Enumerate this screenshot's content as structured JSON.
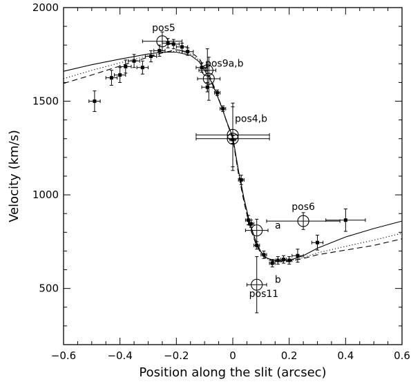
{
  "chart_data": {
    "type": "scatter",
    "xlabel": "Position along the slit (arcsec)",
    "ylabel": "Velocity (km/s)",
    "xlim": [
      -0.6,
      0.6
    ],
    "ylim": [
      200,
      2000
    ],
    "xticks": [
      -0.6,
      -0.4,
      -0.2,
      0,
      0.2,
      0.4,
      0.6
    ],
    "xtick_labels": [
      "−0.6",
      "−0.4",
      "−0.2",
      "0",
      "0.2",
      "0.4",
      "0.6"
    ],
    "yticks": [
      500,
      1000,
      1500,
      2000
    ],
    "ytick_labels": [
      "500",
      "1000",
      "1500",
      "2000"
    ],
    "grid": false,
    "legend": "none",
    "points": [
      {
        "x": -0.49,
        "y": 1500,
        "xerr": 0.02,
        "yerr": 55
      },
      {
        "x": -0.43,
        "y": 1625,
        "xerr": 0.02,
        "yerr": 40
      },
      {
        "x": -0.4,
        "y": 1640,
        "xerr": 0.02,
        "yerr": 40
      },
      {
        "x": -0.38,
        "y": 1685,
        "xerr": 0.02,
        "yerr": 35
      },
      {
        "x": -0.35,
        "y": 1715,
        "xerr": 0.02,
        "yerr": 35
      },
      {
        "x": -0.32,
        "y": 1680,
        "xerr": 0.02,
        "yerr": 35
      },
      {
        "x": -0.29,
        "y": 1740,
        "xerr": 0.02,
        "yerr": 30
      },
      {
        "x": -0.26,
        "y": 1770,
        "xerr": 0.02,
        "yerr": 30
      },
      {
        "x": -0.23,
        "y": 1810,
        "xerr": 0.02,
        "yerr": 25
      },
      {
        "x": -0.21,
        "y": 1805,
        "xerr": 0.02,
        "yerr": 25
      },
      {
        "x": -0.18,
        "y": 1790,
        "xerr": 0.02,
        "yerr": 20
      },
      {
        "x": -0.16,
        "y": 1765,
        "xerr": 0.02,
        "yerr": 20
      },
      {
        "x": -0.11,
        "y": 1680,
        "xerr": 0.02,
        "yerr": 25
      },
      {
        "x": -0.09,
        "y": 1575,
        "xerr": 0.02,
        "yerr": 25
      },
      {
        "x": -0.055,
        "y": 1545,
        "xerr": 0.01,
        "yerr": 15
      },
      {
        "x": -0.035,
        "y": 1460,
        "xerr": 0.01,
        "yerr": 15
      },
      {
        "x": 0.0,
        "y": 1295,
        "xerr": 0.01,
        "yerr": 20
      },
      {
        "x": 0.03,
        "y": 1080,
        "xerr": 0.01,
        "yerr": 25
      },
      {
        "x": 0.055,
        "y": 865,
        "xerr": 0.01,
        "yerr": 25
      },
      {
        "x": 0.065,
        "y": 845,
        "xerr": 0.01,
        "yerr": 20
      },
      {
        "x": 0.085,
        "y": 730,
        "xerr": 0.01,
        "yerr": 20
      },
      {
        "x": 0.11,
        "y": 680,
        "xerr": 0.01,
        "yerr": 20
      },
      {
        "x": 0.14,
        "y": 635,
        "xerr": 0.01,
        "yerr": 20
      },
      {
        "x": 0.16,
        "y": 650,
        "xerr": 0.01,
        "yerr": 20
      },
      {
        "x": 0.18,
        "y": 655,
        "xerr": 0.01,
        "yerr": 20
      },
      {
        "x": 0.2,
        "y": 650,
        "xerr": 0.01,
        "yerr": 20
      },
      {
        "x": 0.23,
        "y": 675,
        "xerr": 0.02,
        "yerr": 35
      },
      {
        "x": 0.3,
        "y": 745,
        "xerr": 0.02,
        "yerr": 40
      },
      {
        "x": 0.4,
        "y": 865,
        "xerr": 0.07,
        "yerr": 60
      }
    ],
    "circles": [
      {
        "x": -0.25,
        "y": 1820,
        "xerr": 0.07,
        "yerr": 50
      },
      {
        "x": -0.09,
        "y": 1665,
        "xerr": 0.03,
        "yerr": 115
      },
      {
        "x": -0.085,
        "y": 1620,
        "xerr": 0.04,
        "yerr": 115
      },
      {
        "x": 0.0,
        "y": 1320,
        "xerr": 0.13,
        "yerr": 170
      },
      {
        "x": 0.0,
        "y": 1300,
        "xerr": 0.13,
        "yerr": 170
      },
      {
        "x": 0.085,
        "y": 810,
        "xerr": 0.04,
        "yerr": 60
      },
      {
        "x": 0.25,
        "y": 860,
        "xerr": 0.13,
        "yerr": 45
      },
      {
        "x": 0.085,
        "y": 520,
        "xerr": 0.035,
        "yerr": 150
      }
    ],
    "models": [
      {
        "style": "solid",
        "points": [
          [
            -0.6,
            1660
          ],
          [
            -0.5,
            1695
          ],
          [
            -0.4,
            1725
          ],
          [
            -0.3,
            1752
          ],
          [
            -0.25,
            1762
          ],
          [
            -0.2,
            1762
          ],
          [
            -0.15,
            1745
          ],
          [
            -0.12,
            1712
          ],
          [
            -0.1,
            1665
          ],
          [
            -0.08,
            1615
          ],
          [
            -0.06,
            1548
          ],
          [
            -0.04,
            1470
          ],
          [
            -0.02,
            1385
          ],
          [
            0,
            1310
          ],
          [
            0.02,
            1130
          ],
          [
            0.04,
            980
          ],
          [
            0.06,
            850
          ],
          [
            0.08,
            760
          ],
          [
            0.1,
            695
          ],
          [
            0.12,
            663
          ],
          [
            0.15,
            648
          ],
          [
            0.2,
            650
          ],
          [
            0.25,
            675
          ],
          [
            0.3,
            715
          ],
          [
            0.35,
            745
          ],
          [
            0.4,
            775
          ],
          [
            0.5,
            820
          ],
          [
            0.6,
            860
          ]
        ]
      },
      {
        "style": "dotted",
        "points": [
          [
            -0.6,
            1620
          ],
          [
            -0.5,
            1665
          ],
          [
            -0.4,
            1705
          ],
          [
            -0.3,
            1742
          ],
          [
            -0.25,
            1758
          ],
          [
            -0.2,
            1768
          ],
          [
            -0.15,
            1752
          ],
          [
            -0.12,
            1720
          ],
          [
            -0.1,
            1672
          ],
          [
            -0.08,
            1620
          ],
          [
            -0.06,
            1552
          ],
          [
            -0.04,
            1472
          ],
          [
            -0.02,
            1385
          ],
          [
            0,
            1305
          ],
          [
            0.02,
            1120
          ],
          [
            0.04,
            970
          ],
          [
            0.06,
            840
          ],
          [
            0.08,
            752
          ],
          [
            0.1,
            690
          ],
          [
            0.12,
            660
          ],
          [
            0.15,
            645
          ],
          [
            0.2,
            648
          ],
          [
            0.25,
            665
          ],
          [
            0.3,
            690
          ],
          [
            0.4,
            725
          ],
          [
            0.5,
            758
          ],
          [
            0.6,
            795
          ]
        ]
      },
      {
        "style": "dashed",
        "points": [
          [
            -0.6,
            1595
          ],
          [
            -0.5,
            1640
          ],
          [
            -0.4,
            1688
          ],
          [
            -0.3,
            1735
          ],
          [
            -0.25,
            1758
          ],
          [
            -0.2,
            1775
          ],
          [
            -0.15,
            1762
          ],
          [
            -0.12,
            1730
          ],
          [
            -0.1,
            1682
          ],
          [
            -0.08,
            1628
          ],
          [
            -0.06,
            1555
          ],
          [
            -0.04,
            1472
          ],
          [
            -0.02,
            1382
          ],
          [
            0,
            1300
          ],
          [
            0.02,
            1112
          ],
          [
            0.04,
            960
          ],
          [
            0.06,
            832
          ],
          [
            0.08,
            745
          ],
          [
            0.1,
            686
          ],
          [
            0.12,
            657
          ],
          [
            0.15,
            642
          ],
          [
            0.2,
            645
          ],
          [
            0.25,
            660
          ],
          [
            0.3,
            680
          ],
          [
            0.4,
            705
          ],
          [
            0.5,
            730
          ],
          [
            0.6,
            765
          ]
        ]
      }
    ],
    "annotations": [
      {
        "text": "pos5",
        "x": -0.245,
        "y": 1875
      },
      {
        "text": "pos9a,b",
        "x": -0.03,
        "y": 1685
      },
      {
        "text": "pos4,b",
        "x": 0.065,
        "y": 1390
      },
      {
        "text": "pos6",
        "x": 0.25,
        "y": 920
      },
      {
        "text": "a",
        "x": 0.16,
        "y": 820
      },
      {
        "text": "b",
        "x": 0.16,
        "y": 530
      },
      {
        "text": "pos11",
        "x": 0.11,
        "y": 455
      }
    ]
  }
}
